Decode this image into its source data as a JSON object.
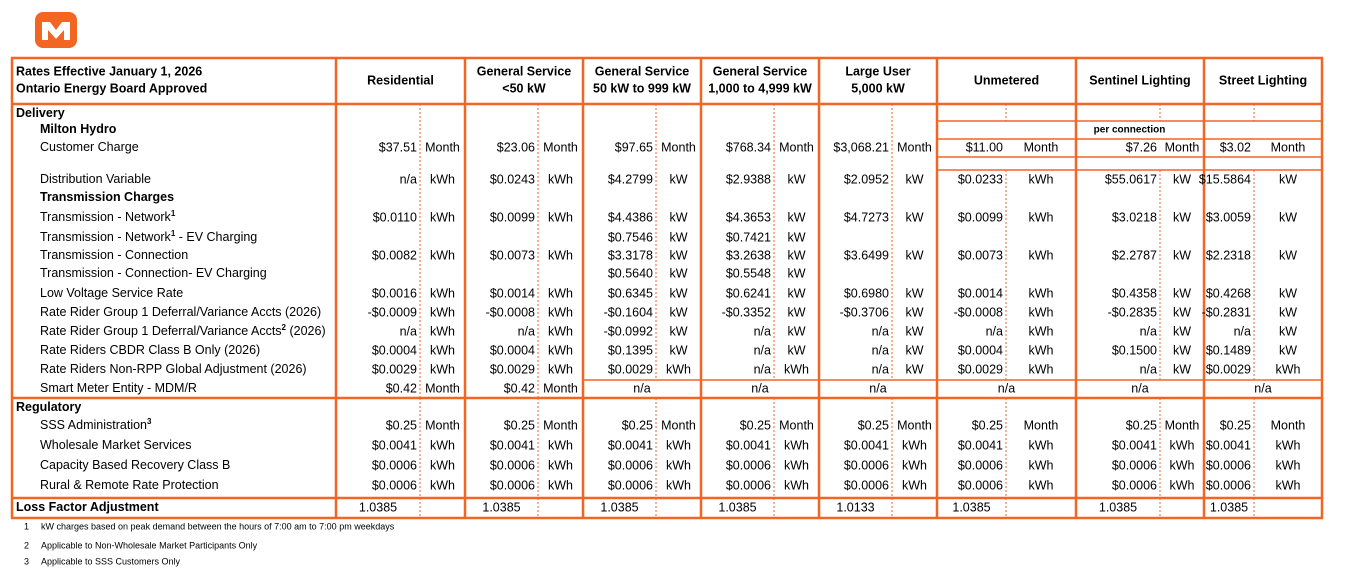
{
  "header": {
    "title_lines": [
      "Rates Effective January 1, 2026",
      "Ontario Energy Board Approved"
    ],
    "columns": [
      [
        "Residential"
      ],
      [
        "General Service",
        "<50 kW"
      ],
      [
        "General Service",
        "50 kW to 999 kW"
      ],
      [
        "General Service",
        "1,000 to 4,999 kW"
      ],
      [
        "Large User",
        "5,000 kW"
      ],
      [
        "Unmetered"
      ],
      [
        "Sentinel Lighting"
      ],
      [
        "Street Lighting"
      ]
    ]
  },
  "rows": [
    {
      "label": "Delivery",
      "style": "section"
    },
    {
      "label": "Milton Hydro",
      "style": "sub",
      "note": "per connection"
    },
    {
      "label": "Customer Charge",
      "style": "item",
      "cells": [
        [
          "$37.51",
          "Month"
        ],
        [
          "$23.06",
          "Month"
        ],
        [
          "$97.65",
          "Month"
        ],
        [
          "$768.34",
          "Month"
        ],
        [
          "$3,068.21",
          "Month"
        ],
        [
          "$11.00",
          "Month"
        ],
        [
          "$7.26",
          "Month"
        ],
        [
          "$3.02",
          "Month"
        ]
      ]
    },
    {
      "label": "Distribution Variable",
      "style": "item",
      "cells": [
        [
          "n/a",
          "kWh"
        ],
        [
          "$0.0243",
          "kWh"
        ],
        [
          "$4.2799",
          "kW"
        ],
        [
          "$2.9388",
          "kW"
        ],
        [
          "$2.0952",
          "kW"
        ],
        [
          "$0.0233",
          "kWh"
        ],
        [
          "$55.0617",
          "kW"
        ],
        [
          "$15.5864",
          "kW"
        ]
      ]
    },
    {
      "label": "Transmission Charges",
      "style": "sub"
    },
    {
      "label": "Transmission - Network",
      "sup": "1",
      "style": "item",
      "cells": [
        [
          "$0.0110",
          "kWh"
        ],
        [
          "$0.0099",
          "kWh"
        ],
        [
          "$4.4386",
          "kW"
        ],
        [
          "$4.3653",
          "kW"
        ],
        [
          "$4.7273",
          "kW"
        ],
        [
          "$0.0099",
          "kWh"
        ],
        [
          "$3.0218",
          "kW"
        ],
        [
          "$3.0059",
          "kW"
        ]
      ]
    },
    {
      "label": "Transmission - Network",
      "sup": "1",
      "suffix": " - EV Charging",
      "style": "item",
      "cells": [
        null,
        null,
        [
          "$0.7546",
          "kW"
        ],
        [
          "$0.7421",
          "kW"
        ],
        null,
        null,
        null,
        null
      ]
    },
    {
      "label": "Transmission - Connection",
      "style": "item",
      "cells": [
        [
          "$0.0082",
          "kWh"
        ],
        [
          "$0.0073",
          "kWh"
        ],
        [
          "$3.3178",
          "kW"
        ],
        [
          "$3.2638",
          "kW"
        ],
        [
          "$3.6499",
          "kW"
        ],
        [
          "$0.0073",
          "kWh"
        ],
        [
          "$2.2787",
          "kW"
        ],
        [
          "$2.2318",
          "kW"
        ]
      ]
    },
    {
      "label": "Transmission - Connection- EV Charging",
      "style": "item",
      "cells": [
        null,
        null,
        [
          "$0.5640",
          "kW"
        ],
        [
          "$0.5548",
          "kW"
        ],
        null,
        null,
        null,
        null
      ]
    },
    {
      "label": "Low Voltage Service Rate",
      "style": "item",
      "cells": [
        [
          "$0.0016",
          "kWh"
        ],
        [
          "$0.0014",
          "kWh"
        ],
        [
          "$0.6345",
          "kW"
        ],
        [
          "$0.6241",
          "kW"
        ],
        [
          "$0.6980",
          "kW"
        ],
        [
          "$0.0014",
          "kWh"
        ],
        [
          "$0.4358",
          "kW"
        ],
        [
          "$0.4268",
          "kW"
        ]
      ]
    },
    {
      "label": "Rate Rider Group 1 Deferral/Variance Accts (2026)",
      "style": "item",
      "cells": [
        [
          "-$0.0009",
          "kWh"
        ],
        [
          "-$0.0008",
          "kWh"
        ],
        [
          "-$0.1604",
          "kW"
        ],
        [
          "-$0.3352",
          "kW"
        ],
        [
          "-$0.3706",
          "kW"
        ],
        [
          "-$0.0008",
          "kWh"
        ],
        [
          "-$0.2835",
          "kW"
        ],
        [
          "-$0.2831",
          "kW"
        ]
      ]
    },
    {
      "label": "Rate Rider Group 1 Deferral/Variance Accts",
      "sup": "2",
      "suffix": " (2026)",
      "style": "item",
      "cells": [
        [
          "n/a",
          "kWh"
        ],
        [
          "n/a",
          "kWh"
        ],
        [
          "-$0.0992",
          "kW"
        ],
        [
          "n/a",
          "kW"
        ],
        [
          "n/a",
          "kW"
        ],
        [
          "n/a",
          "kWh"
        ],
        [
          "n/a",
          "kW"
        ],
        [
          "n/a",
          "kW"
        ]
      ]
    },
    {
      "label": "Rate Riders CBDR Class B Only (2026)",
      "style": "item",
      "cells": [
        [
          "$0.0004",
          "kWh"
        ],
        [
          "$0.0004",
          "kWh"
        ],
        [
          "$0.1395",
          "kW"
        ],
        [
          "n/a",
          "kW"
        ],
        [
          "n/a",
          "kW"
        ],
        [
          "$0.0004",
          "kWh"
        ],
        [
          "$0.1500",
          "kW"
        ],
        [
          "$0.1489",
          "kW"
        ]
      ]
    },
    {
      "label": "Rate Riders Non-RPP Global Adjustment (2026)",
      "style": "item",
      "cells": [
        [
          "$0.0029",
          "kWh"
        ],
        [
          "$0.0029",
          "kWh"
        ],
        [
          "$0.0029",
          "kWh"
        ],
        [
          "n/a",
          "kWh"
        ],
        [
          "n/a",
          "kW"
        ],
        [
          "$0.0029",
          "kWh"
        ],
        [
          "n/a",
          "kW"
        ],
        [
          "$0.0029",
          "kWh"
        ]
      ]
    },
    {
      "label": "Smart Meter Entity - MDM/R",
      "style": "item",
      "cells": [
        [
          "$0.42",
          "Month"
        ],
        [
          "$0.42",
          "Month"
        ],
        [
          "n/a"
        ],
        [
          "n/a"
        ],
        [
          "n/a"
        ],
        [
          "n/a"
        ],
        [
          "n/a"
        ],
        [
          "n/a"
        ]
      ]
    },
    {
      "label": "Regulatory",
      "style": "section"
    },
    {
      "label": "SSS Administration",
      "sup": "3",
      "style": "item",
      "cells": [
        [
          "$0.25",
          "Month"
        ],
        [
          "$0.25",
          "Month"
        ],
        [
          "$0.25",
          "Month"
        ],
        [
          "$0.25",
          "Month"
        ],
        [
          "$0.25",
          "Month"
        ],
        [
          "$0.25",
          "Month"
        ],
        [
          "$0.25",
          "Month"
        ],
        [
          "$0.25",
          "Month"
        ]
      ]
    },
    {
      "label": "Wholesale Market Services",
      "style": "item",
      "cells": [
        [
          "$0.0041",
          "kWh"
        ],
        [
          "$0.0041",
          "kWh"
        ],
        [
          "$0.0041",
          "kWh"
        ],
        [
          "$0.0041",
          "kWh"
        ],
        [
          "$0.0041",
          "kWh"
        ],
        [
          "$0.0041",
          "kWh"
        ],
        [
          "$0.0041",
          "kWh"
        ],
        [
          "$0.0041",
          "kWh"
        ]
      ]
    },
    {
      "label": "Capacity Based Recovery Class B",
      "style": "item",
      "cells": [
        [
          "$0.0006",
          "kWh"
        ],
        [
          "$0.0006",
          "kWh"
        ],
        [
          "$0.0006",
          "kWh"
        ],
        [
          "$0.0006",
          "kWh"
        ],
        [
          "$0.0006",
          "kWh"
        ],
        [
          "$0.0006",
          "kWh"
        ],
        [
          "$0.0006",
          "kWh"
        ],
        [
          "$0.0006",
          "kWh"
        ]
      ]
    },
    {
      "label": "Rural & Remote Rate Protection",
      "style": "item",
      "cells": [
        [
          "$0.0006",
          "kWh"
        ],
        [
          "$0.0006",
          "kWh"
        ],
        [
          "$0.0006",
          "kWh"
        ],
        [
          "$0.0006",
          "kWh"
        ],
        [
          "$0.0006",
          "kWh"
        ],
        [
          "$0.0006",
          "kWh"
        ],
        [
          "$0.0006",
          "kWh"
        ],
        [
          "$0.0006",
          "kWh"
        ]
      ]
    },
    {
      "label": "Loss Factor Adjustment",
      "style": "section",
      "cells": [
        [
          "1.0385"
        ],
        [
          "1.0385"
        ],
        [
          "1.0385"
        ],
        [
          "1.0385"
        ],
        [
          "1.0133"
        ],
        [
          "1.0385"
        ],
        [
          "1.0385"
        ],
        [
          "1.0385"
        ]
      ]
    }
  ],
  "footnotes": [
    {
      "num": "1",
      "text": "kW charges based on peak demand between the hours of 7:00 am to 7:00 pm weekdays"
    },
    {
      "num": "2",
      "text": "Applicable to Non-Wholesale Market Participants Only"
    },
    {
      "num": "3",
      "text": "Applicable to SSS Customers Only"
    }
  ]
}
